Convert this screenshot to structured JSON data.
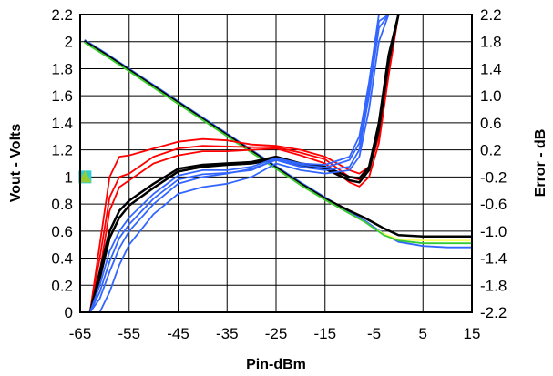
{
  "chart_data": {
    "type": "line",
    "title": "",
    "xlabel": "Pin-dBm",
    "ylabel": "Vout - Volts",
    "y2label": "Error - dB",
    "xlim": [
      -65,
      15
    ],
    "ylim": [
      0,
      2.2
    ],
    "y2lim": [
      -2.2,
      2.2
    ],
    "grid": true,
    "legend": "none",
    "x_ticks": [
      "-65",
      "-55",
      "-45",
      "-35",
      "-25",
      "-15",
      "-5",
      "5",
      "15"
    ],
    "y_ticks": [
      "0",
      "0.2",
      "0.4",
      "0.6",
      "0.8",
      "1",
      "1.2",
      "1.4",
      "1.6",
      "1.8",
      "2",
      "2.2"
    ],
    "y2_ticks": [
      "-2.2",
      "-1.8",
      "-1.4",
      "-1.0",
      "-0.6",
      "-0.2",
      "0.2",
      "0.6",
      "1.0",
      "1.4",
      "1.8",
      "2.2"
    ],
    "colors": {
      "red": "#ff0000",
      "black": "#000000",
      "blue": "#3366ff",
      "yellow": "#ffff66",
      "green": "#33cc33",
      "marker": "#99cc33",
      "marker_edge": "#33cccc"
    },
    "series": [
      {
        "group": "vout",
        "axis": "left",
        "color": "#3366ff",
        "x": [
          -64,
          -60,
          -55,
          -50,
          -45,
          -40,
          -35,
          -30,
          -25,
          -20,
          -15,
          -10,
          -7,
          -5,
          -3,
          0,
          5,
          10,
          15
        ],
        "y": [
          2.01,
          1.92,
          1.8,
          1.68,
          1.56,
          1.44,
          1.32,
          1.2,
          1.08,
          0.96,
          0.85,
          0.74,
          0.68,
          0.63,
          0.58,
          0.52,
          0.49,
          0.48,
          0.48
        ]
      },
      {
        "group": "vout",
        "axis": "left",
        "color": "#000000",
        "x": [
          -64,
          -60,
          -55,
          -50,
          -45,
          -40,
          -35,
          -30,
          -25,
          -20,
          -15,
          -10,
          -7,
          -5,
          -3,
          0,
          5,
          10,
          15
        ],
        "y": [
          2.0,
          1.91,
          1.79,
          1.67,
          1.55,
          1.43,
          1.31,
          1.19,
          1.07,
          0.95,
          0.84,
          0.75,
          0.7,
          0.66,
          0.62,
          0.57,
          0.56,
          0.56,
          0.56
        ]
      },
      {
        "group": "vout",
        "axis": "left",
        "color": "#ffff66",
        "x": [
          -64,
          -60,
          -55,
          -50,
          -45,
          -40,
          -35,
          -30,
          -25,
          -20,
          -15,
          -10,
          -7,
          -5,
          -3,
          0,
          5,
          10,
          15
        ],
        "y": [
          1.99,
          1.9,
          1.78,
          1.66,
          1.54,
          1.42,
          1.3,
          1.18,
          1.06,
          0.94,
          0.83,
          0.73,
          0.67,
          0.62,
          0.58,
          0.54,
          0.53,
          0.53,
          0.53
        ]
      },
      {
        "group": "vout",
        "axis": "left",
        "color": "#33cc33",
        "x": [
          -64,
          -60,
          -55,
          -50,
          -45,
          -40,
          -35,
          -30,
          -25,
          -20,
          -15,
          -10,
          -7,
          -5,
          -3,
          0,
          5,
          10,
          15
        ],
        "y": [
          1.99,
          1.9,
          1.78,
          1.66,
          1.54,
          1.42,
          1.3,
          1.18,
          1.06,
          0.94,
          0.83,
          0.73,
          0.67,
          0.62,
          0.57,
          0.53,
          0.51,
          0.51,
          0.51
        ]
      },
      {
        "group": "error",
        "axis": "right",
        "color": "#ff0000",
        "x": [
          -63,
          -61,
          -59,
          -57,
          -55,
          -50,
          -45,
          -40,
          -35,
          -30,
          -25,
          -20,
          -15,
          -10,
          -8,
          -6,
          -4,
          -2,
          0
        ],
        "y": [
          -2.2,
          -1.2,
          -0.2,
          0.1,
          0.12,
          0.22,
          0.32,
          0.36,
          0.34,
          0.28,
          0.26,
          0.2,
          0.1,
          -0.1,
          -0.15,
          -0.05,
          0.5,
          1.5,
          2.2
        ]
      },
      {
        "group": "error",
        "axis": "right",
        "color": "#ff0000",
        "x": [
          -63,
          -61,
          -59,
          -57,
          -55,
          -50,
          -45,
          -40,
          -35,
          -30,
          -25,
          -20,
          -15,
          -10,
          -8,
          -6,
          -4,
          -2,
          0
        ],
        "y": [
          -2.2,
          -1.4,
          -0.5,
          -0.2,
          -0.15,
          0.1,
          0.22,
          0.26,
          0.25,
          0.24,
          0.24,
          0.16,
          0.06,
          -0.2,
          -0.24,
          -0.1,
          0.4,
          1.4,
          2.2
        ]
      },
      {
        "group": "error",
        "axis": "right",
        "color": "#ff0000",
        "x": [
          -63,
          -61,
          -59,
          -57,
          -55,
          -50,
          -45,
          -40,
          -35,
          -30,
          -25,
          -20,
          -15,
          -10,
          -8,
          -6,
          -4,
          -2,
          0
        ],
        "y": [
          -2.2,
          -1.6,
          -0.7,
          -0.35,
          -0.25,
          0.0,
          0.12,
          0.18,
          0.18,
          0.2,
          0.22,
          0.12,
          0.0,
          -0.28,
          -0.34,
          -0.2,
          0.3,
          1.3,
          2.2
        ]
      },
      {
        "group": "error",
        "axis": "right",
        "color": "#000000",
        "x": [
          -63,
          -61,
          -59,
          -57,
          -55,
          -50,
          -45,
          -40,
          -35,
          -30,
          -25,
          -20,
          -15,
          -10,
          -8,
          -6,
          -4,
          -2,
          0
        ],
        "y": [
          -2.2,
          -1.6,
          -1.0,
          -0.7,
          -0.55,
          -0.3,
          -0.08,
          -0.02,
          0.0,
          0.02,
          0.1,
          0.0,
          -0.05,
          -0.2,
          -0.22,
          -0.05,
          0.6,
          1.6,
          2.2
        ]
      },
      {
        "group": "error",
        "axis": "right",
        "color": "#000000",
        "x": [
          -63,
          -61,
          -59,
          -57,
          -55,
          -50,
          -45,
          -40,
          -35,
          -30,
          -25,
          -20,
          -15,
          -10,
          -8,
          -6,
          -4,
          -2,
          0
        ],
        "y": [
          -2.2,
          -1.7,
          -1.1,
          -0.8,
          -0.62,
          -0.36,
          -0.12,
          -0.05,
          -0.02,
          0.0,
          0.06,
          -0.02,
          -0.08,
          -0.25,
          -0.28,
          -0.1,
          0.5,
          1.5,
          2.2
        ]
      },
      {
        "group": "error",
        "axis": "right",
        "color": "#3366ff",
        "x": [
          -63,
          -61,
          -59,
          -57,
          -55,
          -50,
          -45,
          -40,
          -35,
          -30,
          -25,
          -20,
          -15,
          -10,
          -8,
          -6,
          -4,
          -2,
          0
        ],
        "y": [
          -2.2,
          -1.8,
          -1.3,
          -1.0,
          -0.8,
          -0.45,
          -0.18,
          -0.1,
          -0.1,
          -0.05,
          0.08,
          0.0,
          -0.02,
          0.1,
          0.4,
          1.2,
          2.2,
          2.2,
          2.2
        ]
      },
      {
        "group": "error",
        "axis": "right",
        "color": "#3366ff",
        "x": [
          -63,
          -61,
          -59,
          -57,
          -55,
          -50,
          -45,
          -40,
          -35,
          -30,
          -25,
          -20,
          -15,
          -10,
          -8,
          -6,
          -4,
          -2,
          0
        ],
        "y": [
          -2.2,
          -2.0,
          -1.6,
          -1.25,
          -1.0,
          -0.6,
          -0.3,
          -0.2,
          -0.15,
          -0.08,
          0.05,
          -0.05,
          -0.1,
          -0.05,
          0.2,
          1.0,
          2.0,
          2.2,
          2.2
        ]
      },
      {
        "group": "error",
        "axis": "right",
        "color": "#3366ff",
        "x": [
          -63,
          -61,
          -59,
          -57,
          -55,
          -50,
          -45,
          -40,
          -35,
          -30,
          -25,
          -20,
          -15,
          -10,
          -8,
          -6,
          -4,
          -2,
          0
        ],
        "y": [
          -2.2,
          -2.2,
          -1.9,
          -1.5,
          -1.2,
          -0.75,
          -0.45,
          -0.35,
          -0.3,
          -0.2,
          0.0,
          -0.1,
          -0.15,
          -0.1,
          0.1,
          0.8,
          1.8,
          2.2,
          2.2
        ]
      },
      {
        "group": "error",
        "axis": "right",
        "color": "#3366ff",
        "x": [
          -63,
          -61,
          -59,
          -57,
          -55,
          -50,
          -45,
          -40,
          -35,
          -30,
          -25,
          -20,
          -15,
          -10,
          -8,
          -6,
          -4,
          -2,
          0
        ],
        "y": [
          -2.2,
          -1.9,
          -1.45,
          -1.1,
          -0.9,
          -0.52,
          -0.24,
          -0.16,
          -0.14,
          -0.1,
          0.06,
          -0.02,
          -0.06,
          0.05,
          0.3,
          1.1,
          2.1,
          2.2,
          2.2
        ]
      }
    ],
    "markers": [
      {
        "x": -64,
        "y": 1.0,
        "shape": "square",
        "color": "#33cccc"
      },
      {
        "x": -64,
        "y": 1.0,
        "shape": "triangle",
        "color": "#99cc33"
      }
    ]
  }
}
